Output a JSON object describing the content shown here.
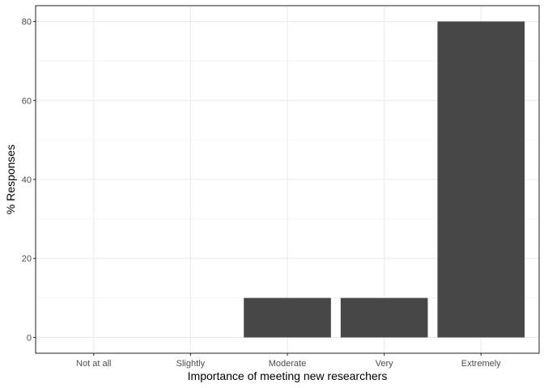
{
  "chart_data": {
    "type": "bar",
    "categories": [
      "Not at all",
      "Slightly",
      "Moderate",
      "Very",
      "Extremely"
    ],
    "values": [
      0,
      0,
      10,
      10,
      80
    ],
    "xlabel": "Importance of meeting new researchers",
    "ylabel": "% Responses",
    "ylim": [
      -4,
      84
    ],
    "yticks": [
      0,
      20,
      40,
      60,
      80
    ],
    "grid": true,
    "bar_color": "#474747",
    "grid_color": "#ebebeb",
    "panel_border_color": "#333333"
  }
}
